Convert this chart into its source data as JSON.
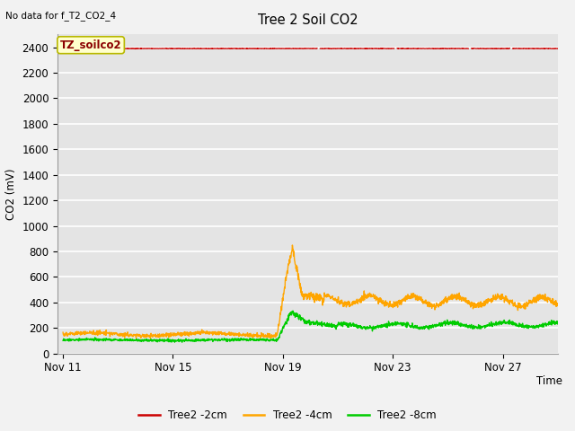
{
  "title": "Tree 2 Soil CO2",
  "no_data_label": "No data for f_T2_CO2_4",
  "ylabel": "CO2 (mV)",
  "xlabel": "Time",
  "annotation_box": "TZ_soilco2",
  "ylim": [
    0,
    2500
  ],
  "yticks": [
    0,
    200,
    400,
    600,
    800,
    1000,
    1200,
    1400,
    1600,
    1800,
    2000,
    2200,
    2400
  ],
  "xtick_labels": [
    "Nov 11",
    "Nov 15",
    "Nov 19",
    "Nov 23",
    "Nov 27"
  ],
  "xtick_positions": [
    0,
    4,
    8,
    12,
    16
  ],
  "fig_bg_color": "#f0f0f0",
  "plot_bg_color": "#e0e0e0",
  "grid_color": "#ffffff",
  "series": {
    "red_2cm": {
      "color": "#cc0000",
      "label": "Tree2 -2cm",
      "value": 2390
    },
    "orange_4cm": {
      "color": "#ffa500",
      "label": "Tree2 -4cm"
    },
    "green_8cm": {
      "color": "#00cc00",
      "label": "Tree2 -8cm"
    }
  }
}
